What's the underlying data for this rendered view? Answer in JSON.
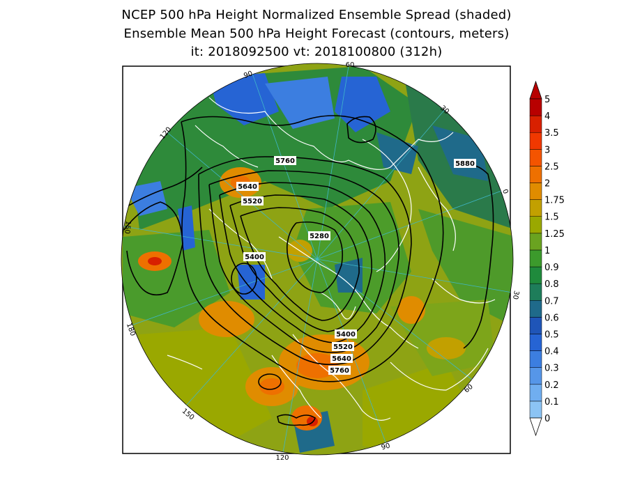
{
  "title": {
    "line1": "NCEP 500 hPa Height Normalized Ensemble Spread (shaded)",
    "line2": "Ensemble Mean 500 hPa Height Forecast (contours, meters)",
    "line3": "it: 2018092500      vt: 2018100800 (312h)"
  },
  "colors": {
    "ocean_low": "#1e7a3a",
    "land_outline": "#ffffff",
    "contour": "#000000",
    "meridian": "#3fb7c9"
  },
  "colorbar": {
    "levels": [
      "0",
      "0.1",
      "0.2",
      "0.3",
      "0.4",
      "0.5",
      "0.6",
      "0.7",
      "0.8",
      "0.9",
      "1",
      "1.25",
      "1.5",
      "1.75",
      "2",
      "2.5",
      "3",
      "3.5",
      "4",
      "5"
    ],
    "colors": [
      "#a8d8f8",
      "#8cc4f4",
      "#70aef0",
      "#5696e8",
      "#3c7ee0",
      "#2664d4",
      "#1f55b8",
      "#1f6a8a",
      "#1e7d5a",
      "#1f8a3c",
      "#3c9a2c",
      "#6aa320",
      "#9aa800",
      "#c2a000",
      "#e08c00",
      "#ee7000",
      "#f45400",
      "#f03800",
      "#d82000",
      "#b80000"
    ]
  },
  "contour_labels": [
    {
      "text": "5760",
      "key": "c5760a"
    },
    {
      "text": "5880",
      "key": "c5880"
    },
    {
      "text": "5640",
      "key": "c5640a"
    },
    {
      "text": "5520",
      "key": "c5520a"
    },
    {
      "text": "5280",
      "key": "c5280"
    },
    {
      "text": "5400",
      "key": "c5400a"
    },
    {
      "text": "5400",
      "key": "c5400b"
    },
    {
      "text": "5520",
      "key": "c5520b"
    },
    {
      "text": "5640",
      "key": "c5640b"
    },
    {
      "text": "5760",
      "key": "c5760b"
    }
  ],
  "longitude_labels": [
    "60",
    "30",
    "0",
    "30",
    "60",
    "90",
    "120",
    "150",
    "180",
    "150",
    "120",
    "90"
  ]
}
